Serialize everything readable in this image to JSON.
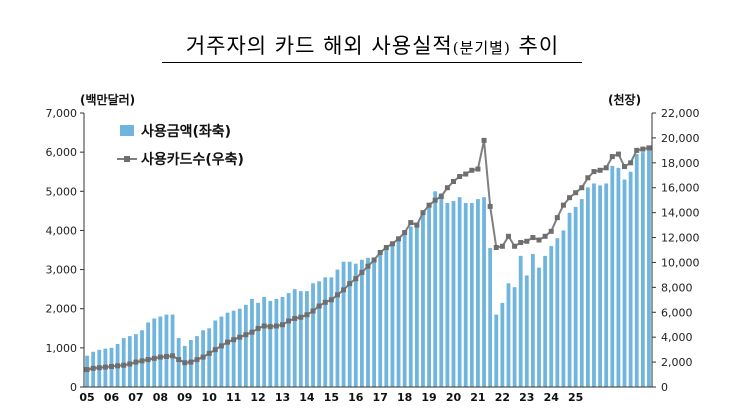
{
  "title": {
    "main": "거주자의 카드 해외 사용실적",
    "sub": "(분기별)",
    "tail": "추이"
  },
  "chart_data": {
    "type": "bar",
    "left_unit": "(백만달러)",
    "right_unit": "(천장)",
    "ylim_left": [
      0,
      7000
    ],
    "ylim_right": [
      0,
      22000
    ],
    "left_ticks": [
      "0",
      "1,000",
      "2,000",
      "3,000",
      "4,000",
      "5,000",
      "6,000",
      "7,000"
    ],
    "right_ticks": [
      "0",
      "2,000",
      "4,000",
      "6,000",
      "8,000",
      "10,000",
      "12,000",
      "14,000",
      "16,000",
      "18,000",
      "20,000",
      "22,000"
    ],
    "x_tick_labels": [
      "05",
      "06",
      "07",
      "08",
      "09",
      "10",
      "11",
      "12",
      "13",
      "14",
      "15",
      "16",
      "17",
      "18",
      "19",
      "20",
      "21",
      "22",
      "23",
      "24",
      "25"
    ],
    "legend_position": "top-left",
    "colors": {
      "bar": "#6fb5dd",
      "line": "#7f7f7f",
      "marker": "#6e6e6e"
    },
    "series": [
      {
        "name": "사용금액(좌축)",
        "type": "bar",
        "values": [
          800,
          900,
          950,
          980,
          1000,
          1100,
          1250,
          1300,
          1350,
          1450,
          1650,
          1750,
          1800,
          1850,
          1850,
          1250,
          1050,
          1200,
          1300,
          1450,
          1500,
          1700,
          1800,
          1900,
          1950,
          2000,
          2100,
          2250,
          2150,
          2300,
          2200,
          2250,
          2300,
          2400,
          2500,
          2450,
          2450,
          2650,
          2700,
          2800,
          2800,
          3000,
          3200,
          3200,
          3150,
          3250,
          3300,
          3250,
          3450,
          3550,
          3700,
          3800,
          3950,
          4100,
          4200,
          4400,
          4700,
          5000,
          4950,
          4700,
          4750,
          4850,
          4700,
          4700,
          4800,
          4850,
          3550,
          1850,
          2150,
          2650,
          2550,
          3350,
          2850,
          3400,
          3050,
          3350,
          3600,
          3800,
          4000,
          4450,
          4600,
          4800,
          5100,
          5200,
          5150,
          5200,
          5650,
          5600,
          5300,
          5500,
          5950,
          6000,
          6100
        ]
      },
      {
        "name": "사용카드수(우축)",
        "type": "line",
        "values": [
          1400,
          1500,
          1550,
          1600,
          1650,
          1700,
          1750,
          1850,
          2000,
          2100,
          2200,
          2300,
          2400,
          2450,
          2500,
          2200,
          1950,
          2000,
          2200,
          2400,
          2700,
          3000,
          3300,
          3600,
          3800,
          4000,
          4200,
          4400,
          4700,
          4900,
          4850,
          4900,
          5000,
          5300,
          5500,
          5600,
          5800,
          6100,
          6500,
          6800,
          7000,
          7400,
          7800,
          8300,
          8700,
          9200,
          9700,
          10200,
          10800,
          11200,
          11500,
          11900,
          12400,
          13200,
          13000,
          14000,
          14600,
          15000,
          15300,
          16000,
          16500,
          16900,
          17100,
          17400,
          17500,
          19800,
          14500,
          11200,
          11300,
          12100,
          11300,
          11600,
          11700,
          12000,
          11800,
          12100,
          12500,
          13600,
          14600,
          15200,
          15600,
          16000,
          16800,
          17300,
          17400,
          17600,
          18500,
          18700,
          17700,
          18000,
          19000,
          19100,
          19200
        ]
      }
    ]
  }
}
